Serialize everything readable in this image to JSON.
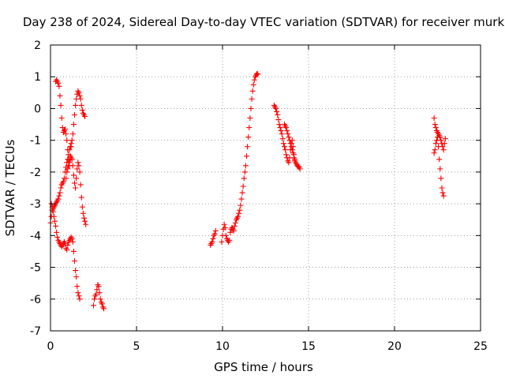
{
  "chart_data": {
    "type": "scatter",
    "title": "Day 238 of 2024, Sidereal Day-to-day VTEC variation (SDTVAR) for receiver murk",
    "xlabel": "GPS time / hours",
    "ylabel": "SDTVAR / TECUs",
    "xlim": [
      0,
      25
    ],
    "ylim": [
      -7,
      2
    ],
    "xticks": [
      0,
      5,
      10,
      15,
      20,
      25
    ],
    "yticks": [
      -7,
      -6,
      -5,
      -4,
      -3,
      -2,
      -1,
      0,
      1,
      2
    ],
    "grid": true,
    "marker": "+",
    "colors": {
      "series": "#ff0000",
      "axis": "#000000",
      "grid": "#a0a0a0"
    },
    "series": [
      {
        "name": "SDTVAR",
        "points": [
          [
            0.0,
            -3.6
          ],
          [
            0.05,
            -3.4
          ],
          [
            0.1,
            -3.2
          ],
          [
            0.15,
            -3.15
          ],
          [
            0.2,
            -3.1
          ],
          [
            0.25,
            -3.05
          ],
          [
            0.3,
            -3.0
          ],
          [
            0.35,
            -2.95
          ],
          [
            0.4,
            -2.9
          ],
          [
            0.45,
            -2.85
          ],
          [
            0.5,
            -2.75
          ],
          [
            0.55,
            -2.65
          ],
          [
            0.6,
            -2.5
          ],
          [
            0.65,
            -2.4
          ],
          [
            0.7,
            -2.35
          ],
          [
            0.75,
            -2.3
          ],
          [
            0.8,
            -2.2
          ],
          [
            0.85,
            -2.0
          ],
          [
            0.9,
            -1.85
          ],
          [
            0.95,
            -1.7
          ],
          [
            1.0,
            -1.6
          ],
          [
            1.05,
            -1.45
          ],
          [
            1.1,
            -1.3
          ],
          [
            1.15,
            -1.2
          ],
          [
            1.2,
            -1.1
          ],
          [
            0.05,
            -3.0
          ],
          [
            0.1,
            -3.1
          ],
          [
            0.15,
            -3.25
          ],
          [
            0.2,
            -3.4
          ],
          [
            0.25,
            -3.55
          ],
          [
            0.3,
            -3.7
          ],
          [
            0.35,
            -3.9
          ],
          [
            0.4,
            -4.05
          ],
          [
            0.45,
            -4.15
          ],
          [
            0.5,
            -4.2
          ],
          [
            0.55,
            -4.25
          ],
          [
            0.6,
            -4.3
          ],
          [
            0.65,
            -4.35
          ],
          [
            0.7,
            -4.3
          ],
          [
            0.75,
            -4.25
          ],
          [
            0.8,
            -4.2
          ],
          [
            0.85,
            -4.25
          ],
          [
            0.9,
            -4.4
          ],
          [
            0.95,
            -4.45
          ],
          [
            1.0,
            -4.3
          ],
          [
            1.05,
            -4.2
          ],
          [
            1.1,
            -4.15
          ],
          [
            1.15,
            -4.1
          ],
          [
            1.2,
            -4.05
          ],
          [
            1.25,
            -4.1
          ],
          [
            1.3,
            -4.2
          ],
          [
            1.35,
            -4.5
          ],
          [
            1.4,
            -4.8
          ],
          [
            1.45,
            -5.1
          ],
          [
            1.5,
            -5.3
          ],
          [
            1.55,
            -5.6
          ],
          [
            1.6,
            -5.8
          ],
          [
            1.65,
            -5.9
          ],
          [
            1.7,
            -6.0
          ],
          [
            0.3,
            0.85
          ],
          [
            0.35,
            0.9
          ],
          [
            0.4,
            0.85
          ],
          [
            0.45,
            0.8
          ],
          [
            0.5,
            0.7
          ],
          [
            0.55,
            0.4
          ],
          [
            0.6,
            0.1
          ],
          [
            0.65,
            -0.3
          ],
          [
            0.7,
            -0.6
          ],
          [
            0.75,
            -0.75
          ],
          [
            0.8,
            -0.7
          ],
          [
            0.85,
            -0.65
          ],
          [
            0.9,
            -0.8
          ],
          [
            0.95,
            -1.0
          ],
          [
            1.0,
            -1.3
          ],
          [
            1.05,
            -1.6
          ],
          [
            1.1,
            -1.8
          ],
          [
            1.15,
            -1.5
          ],
          [
            1.2,
            -1.2
          ],
          [
            1.25,
            -1.0
          ],
          [
            1.3,
            -0.8
          ],
          [
            1.35,
            -0.5
          ],
          [
            1.4,
            -0.2
          ],
          [
            1.45,
            0.1
          ],
          [
            1.5,
            0.3
          ],
          [
            1.55,
            0.45
          ],
          [
            1.6,
            0.55
          ],
          [
            1.65,
            0.5
          ],
          [
            1.7,
            0.4
          ],
          [
            1.75,
            0.3
          ],
          [
            1.8,
            0.1
          ],
          [
            1.85,
            -0.05
          ],
          [
            1.9,
            -0.15
          ],
          [
            1.95,
            -0.2
          ],
          [
            2.0,
            -0.25
          ],
          [
            0.9,
            -2.2
          ],
          [
            0.95,
            -2.0
          ],
          [
            1.0,
            -1.9
          ],
          [
            1.05,
            -1.8
          ],
          [
            1.1,
            -1.7
          ],
          [
            1.15,
            -1.6
          ],
          [
            1.2,
            -1.55
          ],
          [
            1.25,
            -1.6
          ],
          [
            1.3,
            -1.8
          ],
          [
            1.35,
            -2.1
          ],
          [
            1.4,
            -2.35
          ],
          [
            1.45,
            -2.5
          ],
          [
            1.5,
            -2.2
          ],
          [
            1.55,
            -1.9
          ],
          [
            1.6,
            -1.7
          ],
          [
            1.65,
            -1.8
          ],
          [
            1.7,
            -2.0
          ],
          [
            1.75,
            -2.4
          ],
          [
            1.8,
            -2.8
          ],
          [
            1.85,
            -3.1
          ],
          [
            1.9,
            -3.3
          ],
          [
            1.95,
            -3.45
          ],
          [
            2.0,
            -3.55
          ],
          [
            2.05,
            -3.65
          ],
          [
            2.5,
            -6.2
          ],
          [
            2.55,
            -6.0
          ],
          [
            2.6,
            -5.9
          ],
          [
            2.65,
            -5.85
          ],
          [
            2.7,
            -5.7
          ],
          [
            2.75,
            -5.55
          ],
          [
            2.8,
            -5.6
          ],
          [
            2.85,
            -5.8
          ],
          [
            2.9,
            -6.0
          ],
          [
            2.95,
            -6.1
          ],
          [
            3.0,
            -6.15
          ],
          [
            3.05,
            -6.25
          ],
          [
            3.1,
            -6.3
          ],
          [
            9.3,
            -4.3
          ],
          [
            9.35,
            -4.25
          ],
          [
            9.4,
            -4.2
          ],
          [
            9.45,
            -4.1
          ],
          [
            9.5,
            -4.0
          ],
          [
            9.55,
            -3.95
          ],
          [
            9.6,
            -3.85
          ],
          [
            9.95,
            -4.2
          ],
          [
            10.0,
            -4.0
          ],
          [
            10.05,
            -3.8
          ],
          [
            10.1,
            -3.65
          ],
          [
            10.15,
            -3.75
          ],
          [
            10.2,
            -4.0
          ],
          [
            10.25,
            -4.1
          ],
          [
            10.3,
            -4.15
          ],
          [
            10.35,
            -4.2
          ],
          [
            10.4,
            -4.15
          ],
          [
            10.45,
            -3.9
          ],
          [
            10.5,
            -3.8
          ],
          [
            10.55,
            -3.75
          ],
          [
            10.6,
            -3.8
          ],
          [
            10.65,
            -3.85
          ],
          [
            10.7,
            -3.7
          ],
          [
            10.75,
            -3.6
          ],
          [
            10.8,
            -3.5
          ],
          [
            10.85,
            -3.45
          ],
          [
            10.9,
            -3.4
          ],
          [
            10.95,
            -3.3
          ],
          [
            11.0,
            -3.2
          ],
          [
            11.05,
            -3.05
          ],
          [
            11.1,
            -2.85
          ],
          [
            11.15,
            -2.65
          ],
          [
            11.2,
            -2.45
          ],
          [
            11.25,
            -2.2
          ],
          [
            11.3,
            -2.0
          ],
          [
            11.35,
            -1.8
          ],
          [
            11.4,
            -1.5
          ],
          [
            11.45,
            -1.2
          ],
          [
            11.5,
            -0.9
          ],
          [
            11.55,
            -0.6
          ],
          [
            11.6,
            -0.3
          ],
          [
            11.65,
            0.0
          ],
          [
            11.7,
            0.3
          ],
          [
            11.75,
            0.55
          ],
          [
            11.8,
            0.75
          ],
          [
            11.85,
            0.9
          ],
          [
            11.9,
            1.0
          ],
          [
            11.95,
            1.05
          ],
          [
            12.0,
            1.1
          ],
          [
            12.05,
            1.08
          ],
          [
            13.0,
            0.1
          ],
          [
            13.05,
            0.05
          ],
          [
            13.1,
            0.0
          ],
          [
            13.15,
            -0.1
          ],
          [
            13.2,
            -0.2
          ],
          [
            13.25,
            -0.35
          ],
          [
            13.3,
            -0.5
          ],
          [
            13.35,
            -0.6
          ],
          [
            13.4,
            -0.7
          ],
          [
            13.45,
            -0.8
          ],
          [
            13.5,
            -0.95
          ],
          [
            13.55,
            -1.1
          ],
          [
            13.6,
            -1.2
          ],
          [
            13.65,
            -1.3
          ],
          [
            13.7,
            -1.45
          ],
          [
            13.75,
            -1.55
          ],
          [
            13.8,
            -1.65
          ],
          [
            13.85,
            -1.7
          ],
          [
            13.9,
            -1.55
          ],
          [
            13.95,
            -1.3
          ],
          [
            14.0,
            -1.1
          ],
          [
            14.05,
            -1.0
          ],
          [
            14.1,
            -1.2
          ],
          [
            14.15,
            -1.45
          ],
          [
            14.2,
            -1.6
          ],
          [
            14.25,
            -1.7
          ],
          [
            14.3,
            -1.75
          ],
          [
            14.35,
            -1.8
          ],
          [
            14.4,
            -1.82
          ],
          [
            14.45,
            -1.85
          ],
          [
            14.5,
            -1.9
          ],
          [
            13.6,
            -0.5
          ],
          [
            13.65,
            -0.55
          ],
          [
            13.7,
            -0.6
          ],
          [
            13.75,
            -0.7
          ],
          [
            13.8,
            -0.8
          ],
          [
            13.85,
            -0.9
          ],
          [
            13.9,
            -1.0
          ],
          [
            13.95,
            -1.1
          ],
          [
            14.0,
            -1.2
          ],
          [
            14.05,
            -1.3
          ],
          [
            14.1,
            -1.4
          ],
          [
            14.15,
            -1.55
          ],
          [
            14.2,
            -1.65
          ],
          [
            22.3,
            -0.3
          ],
          [
            22.35,
            -0.5
          ],
          [
            22.4,
            -0.6
          ],
          [
            22.45,
            -0.7
          ],
          [
            22.5,
            -0.75
          ],
          [
            22.55,
            -0.8
          ],
          [
            22.6,
            -0.85
          ],
          [
            22.65,
            -0.9
          ],
          [
            22.7,
            -1.0
          ],
          [
            22.75,
            -1.1
          ],
          [
            22.8,
            -1.2
          ],
          [
            22.85,
            -1.3
          ],
          [
            22.9,
            -1.1
          ],
          [
            22.95,
            -0.95
          ],
          [
            22.3,
            -1.4
          ],
          [
            22.35,
            -1.3
          ],
          [
            22.4,
            -1.1
          ],
          [
            22.45,
            -1.0
          ],
          [
            22.5,
            -0.9
          ],
          [
            22.55,
            -1.2
          ],
          [
            22.6,
            -1.6
          ],
          [
            22.65,
            -1.9
          ],
          [
            22.7,
            -2.2
          ],
          [
            22.75,
            -2.5
          ],
          [
            22.8,
            -2.65
          ],
          [
            22.85,
            -2.75
          ]
        ]
      }
    ]
  }
}
